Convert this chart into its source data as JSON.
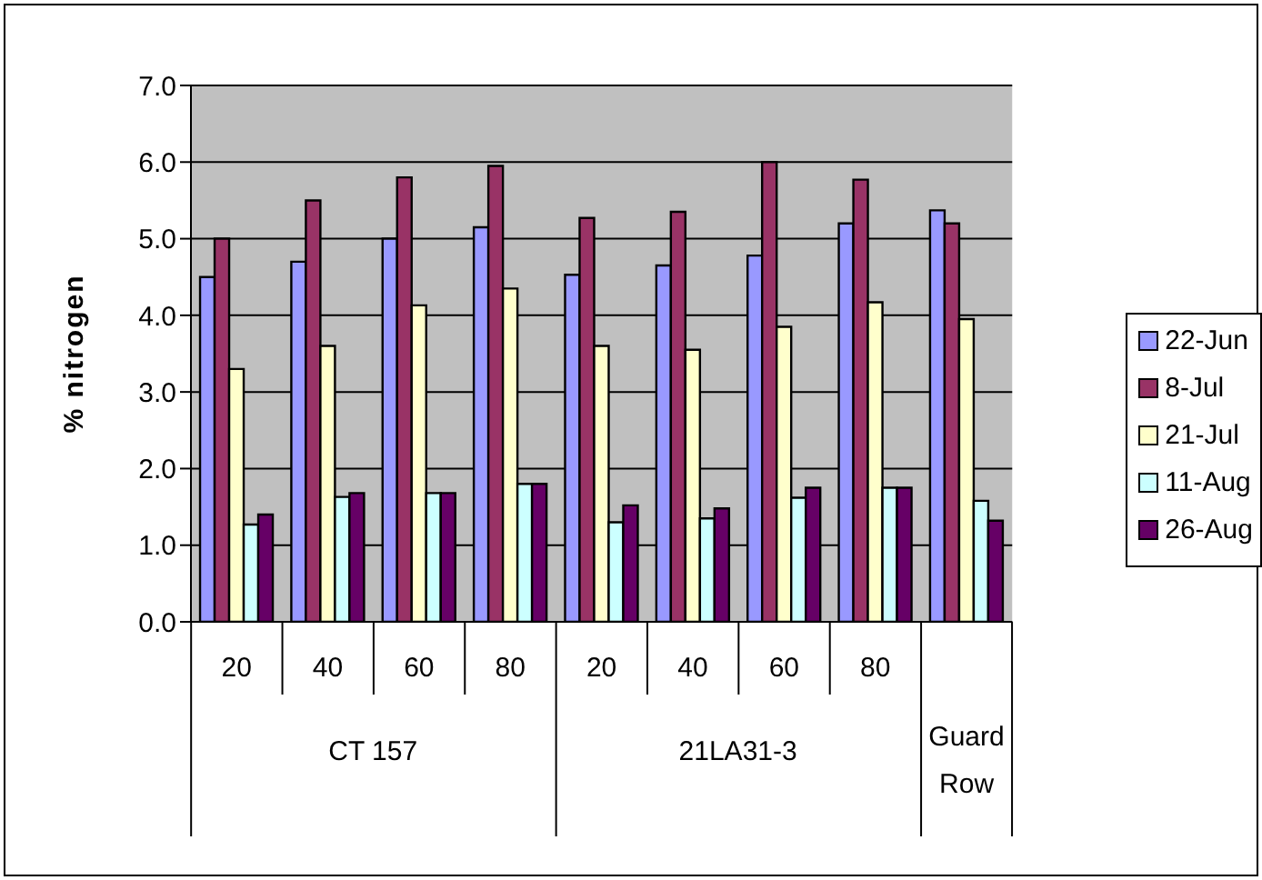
{
  "chart_data": {
    "type": "bar",
    "ylabel": "% nitrogen",
    "categories": [
      "20",
      "40",
      "60",
      "80",
      "20",
      "40",
      "60",
      "80",
      null
    ],
    "annotations": [
      "CT 157",
      "21LA31-3",
      "Guard Row"
    ],
    "series": [
      {
        "name": "22-Jun",
        "color": "#9999ff",
        "values": [
          4.5,
          4.7,
          5.0,
          5.15,
          4.53,
          4.65,
          4.78,
          5.2,
          5.37
        ]
      },
      {
        "name": "8-Jul",
        "color": "#993366",
        "values": [
          5.0,
          5.5,
          5.8,
          5.95,
          5.27,
          5.35,
          6.0,
          5.77,
          5.2
        ]
      },
      {
        "name": "21-Jul",
        "color": "#ffffcc",
        "values": [
          3.3,
          3.6,
          4.13,
          4.35,
          3.6,
          3.55,
          3.85,
          4.17,
          3.95
        ]
      },
      {
        "name": "11-Aug",
        "color": "#ccffff",
        "values": [
          1.27,
          1.63,
          1.68,
          1.8,
          1.3,
          1.35,
          1.62,
          1.75,
          1.58
        ]
      },
      {
        "name": "26-Aug",
        "color": "#660066",
        "values": [
          1.4,
          1.68,
          1.68,
          1.8,
          1.52,
          1.48,
          1.75,
          1.75,
          1.32
        ]
      }
    ],
    "ylim": [
      0,
      7
    ],
    "yticks": [
      {
        "value": 0,
        "label": "0.0"
      },
      {
        "value": 1,
        "label": "1.0"
      },
      {
        "value": 2,
        "label": "2.0"
      },
      {
        "value": 3,
        "label": "3.0"
      },
      {
        "value": 4,
        "label": "4.0"
      },
      {
        "value": 5,
        "label": "5.0"
      },
      {
        "value": 6,
        "label": "6.0"
      },
      {
        "value": 7,
        "label": "7.0"
      }
    ],
    "grid": "y",
    "legend": "right"
  }
}
